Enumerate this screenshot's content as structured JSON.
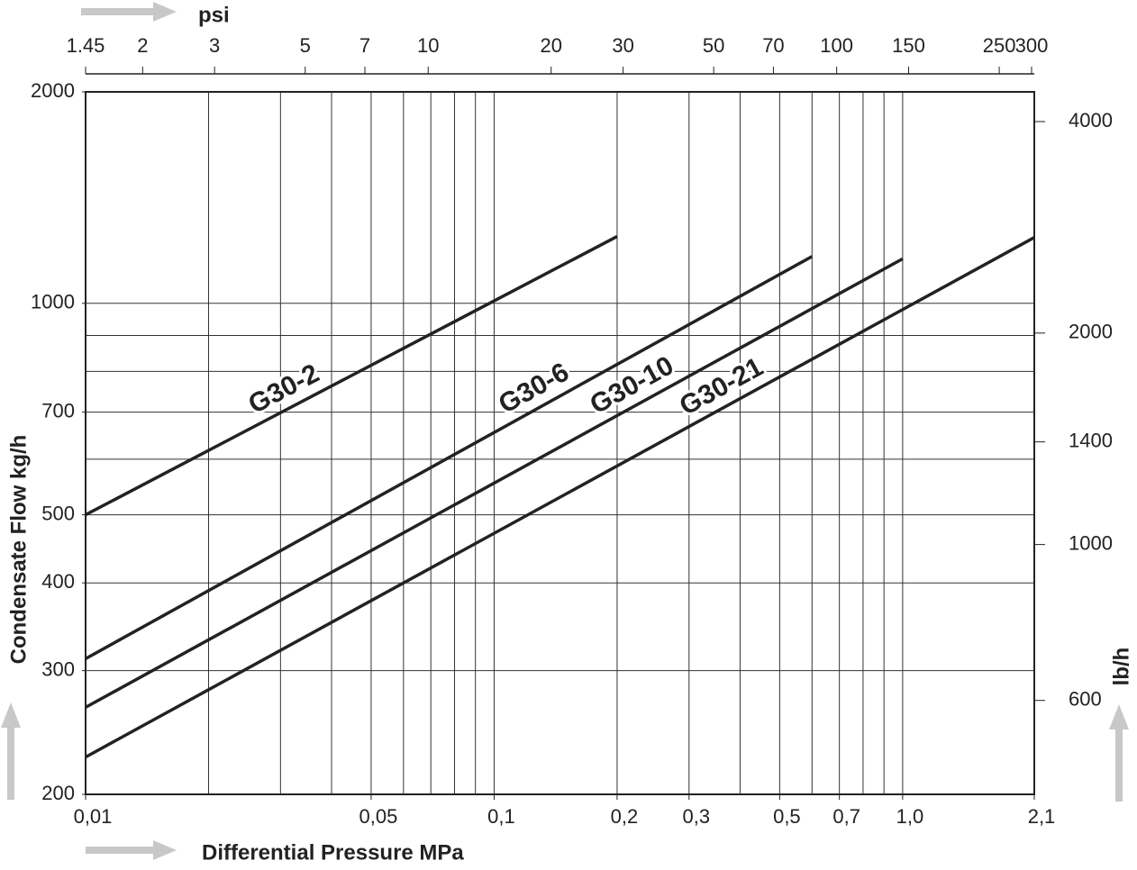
{
  "chart_data": {
    "type": "line",
    "x_label": "Differential Pressure MPa",
    "y_label": "Condensate Flow kg/h",
    "x2_label": "psi",
    "y2_label": "lb/h",
    "xscale": "log",
    "yscale": "log",
    "grid": true,
    "color": "#222222",
    "xlim": [
      0.01,
      2.1
    ],
    "xticks": [
      {
        "value": 0.01,
        "label": "0,01"
      },
      {
        "value": 0.05,
        "label": "0,05"
      },
      {
        "value": 0.1,
        "label": "0,1"
      },
      {
        "value": 0.2,
        "label": "0,2"
      },
      {
        "value": 0.3,
        "label": "0,3"
      },
      {
        "value": 0.5,
        "label": "0,5"
      },
      {
        "value": 0.7,
        "label": "0,7"
      },
      {
        "value": 1,
        "label": "1,0"
      },
      {
        "value": 2.1,
        "label": "2,1"
      }
    ],
    "xgrid": [
      0.02,
      0.03,
      0.04,
      0.05,
      0.06,
      0.07,
      0.08,
      0.09,
      0.1,
      0.2,
      0.3,
      0.4,
      0.5,
      0.6,
      0.7,
      0.8,
      0.9,
      1
    ],
    "x2lim": [
      1.45,
      304.6
    ],
    "x2ticks": [
      1.45,
      2,
      3,
      5,
      7,
      10,
      20,
      30,
      50,
      70,
      100,
      150,
      250,
      300
    ],
    "ylim": [
      200,
      2000
    ],
    "yticks": [
      200,
      300,
      400,
      500,
      700,
      1000,
      2000
    ],
    "ygrid": [
      300,
      400,
      500,
      600,
      700,
      800,
      900,
      1000
    ],
    "y2lim": [
      441,
      4409
    ],
    "y2ticks": [
      600,
      1000,
      1400,
      2000,
      4000
    ],
    "series": [
      {
        "name": "G30-2",
        "x": [
          0.01,
          0.2
        ],
        "values": [
          500,
          1245
        ]
      },
      {
        "name": "G30-6",
        "x": [
          0.01,
          0.6
        ],
        "values": [
          312,
          1166
        ]
      },
      {
        "name": "G30-10",
        "x": [
          0.01,
          1
        ],
        "values": [
          266,
          1157
        ]
      },
      {
        "name": "G30-21",
        "x": [
          0.01,
          2.1
        ],
        "values": [
          226,
          1241
        ]
      }
    ]
  }
}
